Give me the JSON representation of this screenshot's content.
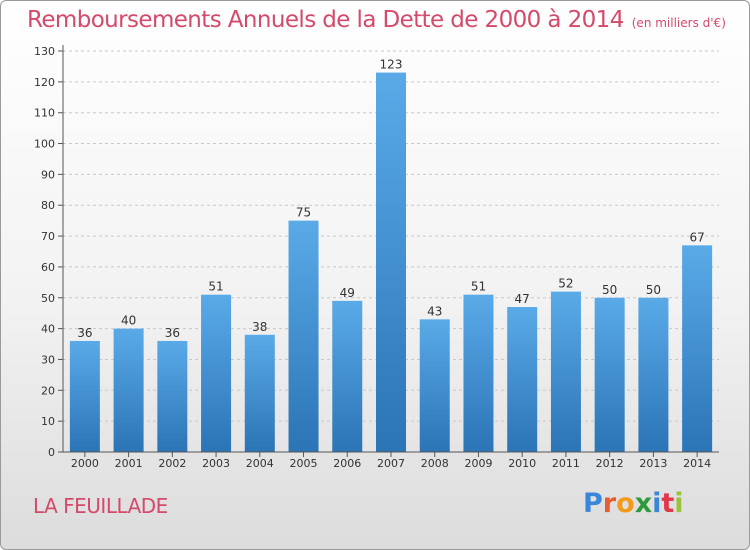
{
  "title": {
    "main": "Remboursements Annuels de la Dette de 2000 à 2014",
    "unit": "(en milliers d'€)"
  },
  "place": "LA FEUILLADE",
  "logo": {
    "letters": [
      "P",
      "r",
      "o",
      "x",
      "i",
      "t",
      "i"
    ]
  },
  "colors": {
    "bar_top": "#5aaae8",
    "bar_bottom": "#2b74b6",
    "title": "#d44a6a"
  },
  "chart_data": {
    "type": "bar",
    "categories": [
      "2000",
      "2001",
      "2002",
      "2003",
      "2004",
      "2005",
      "2006",
      "2007",
      "2008",
      "2009",
      "2010",
      "2011",
      "2012",
      "2013",
      "2014"
    ],
    "values": [
      36,
      40,
      36,
      51,
      38,
      75,
      49,
      123,
      43,
      51,
      47,
      52,
      50,
      50,
      67
    ],
    "title": "Remboursements Annuels de la Dette de 2000 à 2014",
    "ylim": [
      0,
      130
    ],
    "yticks": [
      0,
      10,
      20,
      30,
      40,
      50,
      60,
      70,
      80,
      90,
      100,
      110,
      120,
      130
    ],
    "grid": true,
    "data_labels": true
  }
}
